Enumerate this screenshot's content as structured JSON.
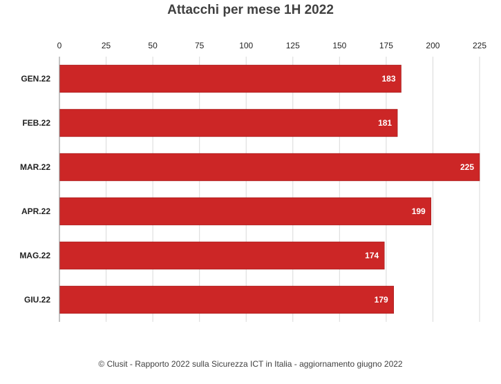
{
  "chart_data": {
    "type": "bar",
    "orientation": "horizontal",
    "title": "Attacchi per mese 1H 2022",
    "categories": [
      "GEN.22",
      "FEB.22",
      "MAR.22",
      "APR.22",
      "MAG.22",
      "GIU.22"
    ],
    "values": [
      183,
      181,
      225,
      199,
      174,
      179
    ],
    "xlim": [
      0,
      225
    ],
    "xticks": [
      0,
      25,
      50,
      75,
      100,
      125,
      150,
      175,
      200,
      225
    ],
    "x_axis_position": "top",
    "grid": true,
    "legend": "none",
    "bar_color": "#cc2626",
    "data_labels": true
  },
  "footer": "© Clusit - Rapporto 2022 sulla Sicurezza ICT in Italia - aggiornamento giugno 2022"
}
